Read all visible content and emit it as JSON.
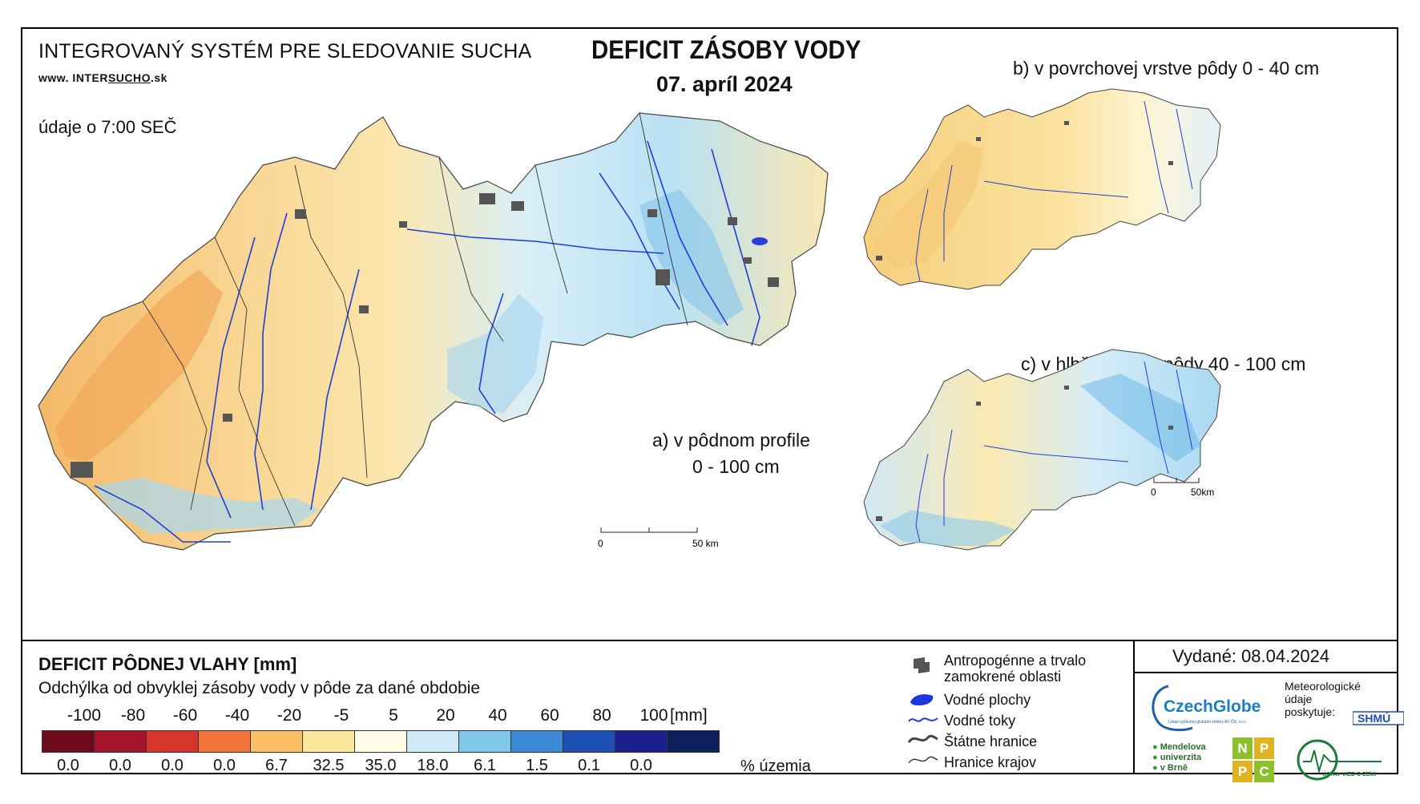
{
  "header": {
    "system_name": "INTEGROVANÝ SYSTÉM PRE SLEDOVANIE SUCHA",
    "website_prefix": "www. INTER",
    "website_underlined": "SUCHO",
    "website_suffix": ".sk",
    "data_time": "údaje o 7:00 SEČ",
    "title": "DEFICIT ZÁSOBY VODY",
    "date": "07. apríl 2024"
  },
  "maps": {
    "a_label_line1": "a) v pôdnom profile",
    "a_label_line2": "0 - 100 cm",
    "b_label": "b) v povrchovej vrstve pôdy 0 - 40 cm",
    "c_label": "c) v hlbšej vrstve pôdy 40 - 100 cm",
    "scale_main_start": "0",
    "scale_main_end": "50 km",
    "scale_small_start": "0",
    "scale_small_end": "50km"
  },
  "legend": {
    "title": "DEFICIT PÔDNEJ VLAHY [mm]",
    "subtitle": "Odchýlka od obvyklej zásoby vody v pôde za dané obdobie",
    "ticks": [
      "-100",
      "-80",
      "-60",
      "-40",
      "-20",
      "-5",
      "5",
      "20",
      "40",
      "60",
      "80",
      "100"
    ],
    "unit": "[mm]",
    "colors": [
      "#6e0b1f",
      "#a3132a",
      "#d7352a",
      "#f2763c",
      "#fbbf68",
      "#fbe89a",
      "#fffde6",
      "#cfeaf6",
      "#7fc8ec",
      "#3c8ad8",
      "#1c4fb4",
      "#1b1f8a",
      "#0d1f5c"
    ],
    "percentages": [
      "0.0",
      "0.0",
      "0.0",
      "0.0",
      "6.7",
      "32.5",
      "35.0",
      "18.0",
      "6.1",
      "1.5",
      "0.1",
      "0.0"
    ],
    "percent_label": "% územia"
  },
  "map_legend": {
    "items": [
      {
        "label": "Antropogénne a trvalo\nzamokrené oblasti",
        "icon": "urban-area-icon"
      },
      {
        "label": "Vodné plochy",
        "icon": "water-body-icon"
      },
      {
        "label": "Vodné toky",
        "icon": "river-icon"
      },
      {
        "label": "Štátne hranice",
        "icon": "state-border-icon"
      },
      {
        "label": "Hranice krajov",
        "icon": "region-border-icon"
      }
    ]
  },
  "issuer": {
    "issued": "Vydané: 08.04.2024",
    "czechglobe": "CzechGlobe",
    "czechglobe_sub": "Ústav výzkumu globální změny AV ČR, v.v.i.",
    "meteo_line1": "Meteorologické",
    "meteo_line2": "údaje",
    "meteo_line3": "poskytuje:",
    "shmu": "SHMÚ",
    "mendel_line1": "Mendelova",
    "mendel_line2": "univerzita",
    "mendel_line3": "v Brně",
    "nppc_letters": [
      "N",
      "P",
      "P",
      "C"
    ],
    "uvz": "ÚSTAV VIED O ZEMI"
  }
}
